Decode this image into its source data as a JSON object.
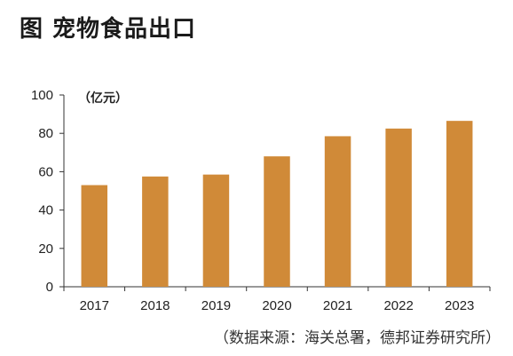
{
  "title": "图  宠物食品出口",
  "source": "（数据来源：海关总署，德邦证券研究所）",
  "colors": {
    "bar": "#D08A38",
    "axis": "#333333"
  },
  "chart_data": {
    "type": "bar",
    "unit": "（亿元）",
    "categories": [
      "2017",
      "2018",
      "2019",
      "2020",
      "2021",
      "2022",
      "2023"
    ],
    "values": [
      53,
      57.5,
      58.5,
      68,
      78.5,
      82.5,
      86.5
    ],
    "ylim": [
      0,
      100
    ],
    "yticks": [
      0,
      20,
      40,
      60,
      80,
      100
    ],
    "grid": false,
    "legend": "none"
  }
}
